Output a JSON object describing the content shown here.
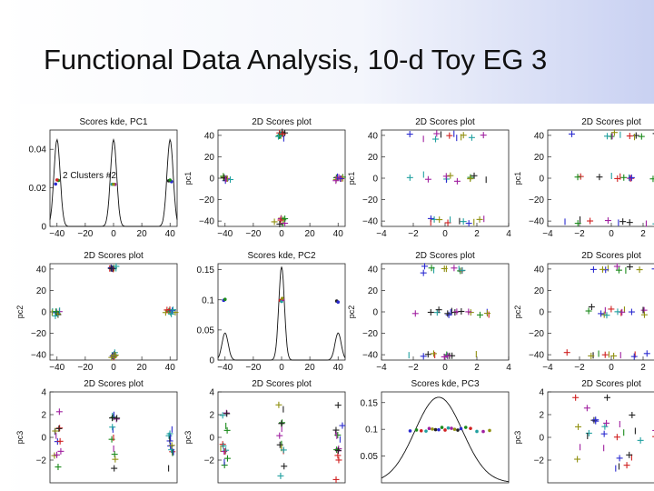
{
  "slide": {
    "title": "Functional Data Analysis, 10-d Toy EG 3"
  },
  "chart_data": {
    "type": "scatter",
    "layout": "scatterplot-matrix",
    "series_colors": [
      "#2a2ad0",
      "#1a8a1a",
      "#d02020",
      "#20a0a0",
      "#a020a0",
      "#909010",
      "#202020"
    ],
    "panels": [
      {
        "row": 0,
        "col": 0,
        "type": "line",
        "title": "Scores kde, PC1",
        "xlabel": "",
        "ylabel": "",
        "xlim": [
          -45,
          45
        ],
        "ylim": [
          0,
          0.05
        ],
        "xticks": [
          {
            "v": -40,
            "t": "-40"
          },
          {
            "v": -20,
            "t": "-20"
          },
          {
            "v": 0,
            "t": "0"
          },
          {
            "v": 20,
            "t": "20"
          },
          {
            "v": 40,
            "t": "40"
          }
        ],
        "yticks": [
          {
            "v": 0,
            "t": "0"
          },
          {
            "v": 0.02,
            "t": "0.02"
          },
          {
            "v": 0.04,
            "t": "0.04"
          }
        ],
        "annotation": "2 Clusters #2",
        "peaks": [
          {
            "center": -40,
            "height": 0.045,
            "width": 2.2
          },
          {
            "center": 0,
            "height": 0.045,
            "width": 2.2
          },
          {
            "center": 40,
            "height": 0.045,
            "width": 2.2
          }
        ],
        "points_y": 0.023,
        "points_x": [
          -41,
          -39,
          -40,
          -1,
          1,
          0,
          39,
          41,
          40
        ]
      },
      {
        "row": 0,
        "col": 1,
        "type": "scatter",
        "title": "2D Scores plot",
        "xlabel": "",
        "ylabel": "pc1",
        "xlim": [
          -45,
          45
        ],
        "ylim": [
          -45,
          45
        ],
        "xticks": [
          {
            "v": -40,
            "t": "-40"
          },
          {
            "v": -20,
            "t": "-20"
          },
          {
            "v": 0,
            "t": "0"
          },
          {
            "v": 20,
            "t": "20"
          },
          {
            "v": 40,
            "t": "40"
          }
        ],
        "yticks": [
          {
            "v": -40,
            "t": "-40"
          },
          {
            "v": -20,
            "t": "-20"
          },
          {
            "v": 0,
            "t": "0"
          },
          {
            "v": 20,
            "t": "20"
          },
          {
            "v": 40,
            "t": "40"
          }
        ],
        "clusters": [
          {
            "x": 0,
            "y": 40,
            "sx": 1.5,
            "sy": 1.5,
            "n": 10
          },
          {
            "x": -40,
            "y": 0,
            "sx": 1.5,
            "sy": 1.5,
            "n": 10
          },
          {
            "x": 40,
            "y": 0,
            "sx": 1.5,
            "sy": 1.5,
            "n": 10
          },
          {
            "x": 0,
            "y": -40,
            "sx": 1.5,
            "sy": 1.5,
            "n": 10
          }
        ]
      },
      {
        "row": 0,
        "col": 2,
        "type": "scatter",
        "title": "2D Scores plot",
        "xlabel": "",
        "ylabel": "pc1",
        "xlim": [
          -4,
          4
        ],
        "ylim": [
          -45,
          45
        ],
        "xticks": [
          {
            "v": -4,
            "t": "-4"
          },
          {
            "v": -2,
            "t": "-2"
          },
          {
            "v": 0,
            "t": "0"
          },
          {
            "v": 2,
            "t": "2"
          },
          {
            "v": 4,
            "t": "4"
          }
        ],
        "yticks": [
          {
            "v": -40,
            "t": "-40"
          },
          {
            "v": -20,
            "t": "-20"
          },
          {
            "v": 0,
            "t": "0"
          },
          {
            "v": 20,
            "t": "20"
          },
          {
            "v": 40,
            "t": "40"
          }
        ],
        "clusters": [
          {
            "x": 0.2,
            "y": 40,
            "sx": 1.4,
            "sy": 1.5,
            "n": 12
          },
          {
            "x": 0.2,
            "y": 0,
            "sx": 1.4,
            "sy": 1.5,
            "n": 12
          },
          {
            "x": 0.2,
            "y": -40,
            "sx": 1.4,
            "sy": 1.5,
            "n": 12
          }
        ]
      },
      {
        "row": 0,
        "col": 3,
        "type": "scatter",
        "title": "2D Scores plot",
        "xlabel": "",
        "ylabel": "pc1",
        "xlim": [
          -4,
          4
        ],
        "ylim": [
          -45,
          45
        ],
        "xticks": [
          {
            "v": -4,
            "t": "-4"
          },
          {
            "v": -2,
            "t": "-2"
          },
          {
            "v": 0,
            "t": "0"
          },
          {
            "v": 2,
            "t": "2"
          },
          {
            "v": 4,
            "t": "4"
          }
        ],
        "yticks": [
          {
            "v": -40,
            "t": "-40"
          },
          {
            "v": -20,
            "t": "-20"
          },
          {
            "v": 0,
            "t": "0"
          },
          {
            "v": 20,
            "t": "20"
          },
          {
            "v": 40,
            "t": "40"
          }
        ],
        "clusters": [
          {
            "x": 0.5,
            "y": 40,
            "sx": 1.8,
            "sy": 1.5,
            "n": 12
          },
          {
            "x": 0.5,
            "y": 0,
            "sx": 1.8,
            "sy": 1.5,
            "n": 12
          },
          {
            "x": 0.5,
            "y": -40,
            "sx": 1.8,
            "sy": 1.5,
            "n": 12
          }
        ]
      },
      {
        "row": 1,
        "col": 0,
        "type": "scatter",
        "title": "2D Scores plot",
        "xlabel": "",
        "ylabel": "pc2",
        "xlim": [
          -45,
          45
        ],
        "ylim": [
          -45,
          45
        ],
        "xticks": [
          {
            "v": -40,
            "t": "-40"
          },
          {
            "v": -20,
            "t": "-20"
          },
          {
            "v": 0,
            "t": "0"
          },
          {
            "v": 20,
            "t": "20"
          },
          {
            "v": 40,
            "t": "40"
          }
        ],
        "yticks": [
          {
            "v": -40,
            "t": "-40"
          },
          {
            "v": -20,
            "t": "-20"
          },
          {
            "v": 0,
            "t": "0"
          },
          {
            "v": 20,
            "t": "20"
          },
          {
            "v": 40,
            "t": "40"
          }
        ],
        "clusters": [
          {
            "x": 0,
            "y": 40,
            "sx": 1.5,
            "sy": 1.5,
            "n": 10
          },
          {
            "x": -40,
            "y": 0,
            "sx": 1.5,
            "sy": 1.5,
            "n": 10
          },
          {
            "x": 40,
            "y": 0,
            "sx": 1.5,
            "sy": 1.5,
            "n": 10
          },
          {
            "x": 0,
            "y": -40,
            "sx": 1.5,
            "sy": 1.5,
            "n": 10
          }
        ]
      },
      {
        "row": 1,
        "col": 1,
        "type": "line",
        "title": "Scores kde, PC2",
        "xlabel": "",
        "ylabel": "",
        "xlim": [
          -45,
          45
        ],
        "ylim": [
          0,
          0.16
        ],
        "xticks": [
          {
            "v": -40,
            "t": "-40"
          },
          {
            "v": -20,
            "t": "-20"
          },
          {
            "v": 0,
            "t": "0"
          },
          {
            "v": 20,
            "t": "20"
          },
          {
            "v": 40,
            "t": "40"
          }
        ],
        "yticks": [
          {
            "v": 0,
            "t": "0"
          },
          {
            "v": 0.05,
            "t": "0.05"
          },
          {
            "v": 0.1,
            "t": "0.1"
          },
          {
            "v": 0.15,
            "t": "0.15"
          }
        ],
        "peaks": [
          {
            "center": -40,
            "height": 0.045,
            "width": 2.2
          },
          {
            "center": 0,
            "height": 0.155,
            "width": 2.0
          },
          {
            "center": 40,
            "height": 0.045,
            "width": 2.2
          }
        ],
        "points_y": 0.1,
        "points_x": [
          -41,
          -40,
          -1,
          0,
          1,
          0.5,
          39,
          40
        ]
      },
      {
        "row": 1,
        "col": 2,
        "type": "scatter",
        "title": "2D Scores plot",
        "xlabel": "",
        "ylabel": "pc2",
        "xlim": [
          -4,
          4
        ],
        "ylim": [
          -45,
          45
        ],
        "xticks": [
          {
            "v": -4,
            "t": "-4"
          },
          {
            "v": -2,
            "t": "-2"
          },
          {
            "v": 0,
            "t": "0"
          },
          {
            "v": 2,
            "t": "2"
          },
          {
            "v": 4,
            "t": "4"
          }
        ],
        "yticks": [
          {
            "v": -40,
            "t": "-40"
          },
          {
            "v": -20,
            "t": "-20"
          },
          {
            "v": 0,
            "t": "0"
          },
          {
            "v": 20,
            "t": "20"
          },
          {
            "v": 40,
            "t": "40"
          }
        ],
        "clusters": [
          {
            "x": 0.3,
            "y": 40,
            "sx": 1.4,
            "sy": 1.5,
            "n": 12
          },
          {
            "x": 0.3,
            "y": 0,
            "sx": 1.6,
            "sy": 1.5,
            "n": 18
          },
          {
            "x": 0.3,
            "y": -40,
            "sx": 1.4,
            "sy": 1.5,
            "n": 12
          }
        ]
      },
      {
        "row": 1,
        "col": 3,
        "type": "scatter",
        "title": "2D Scores plot",
        "xlabel": "",
        "ylabel": "pc2",
        "xlim": [
          -4,
          4
        ],
        "ylim": [
          -45,
          45
        ],
        "xticks": [
          {
            "v": -4,
            "t": "-4"
          },
          {
            "v": -2,
            "t": "-2"
          },
          {
            "v": 0,
            "t": "0"
          },
          {
            "v": 2,
            "t": "2"
          },
          {
            "v": 4,
            "t": "4"
          }
        ],
        "yticks": [
          {
            "v": -40,
            "t": "-40"
          },
          {
            "v": -20,
            "t": "-20"
          },
          {
            "v": 0,
            "t": "0"
          },
          {
            "v": 20,
            "t": "20"
          },
          {
            "v": 40,
            "t": "40"
          }
        ],
        "clusters": [
          {
            "x": 0.5,
            "y": 40,
            "sx": 1.8,
            "sy": 1.5,
            "n": 12
          },
          {
            "x": 0.5,
            "y": 0,
            "sx": 1.8,
            "sy": 1.5,
            "n": 16
          },
          {
            "x": 0.5,
            "y": -40,
            "sx": 1.8,
            "sy": 1.5,
            "n": 12
          }
        ]
      },
      {
        "row": 2,
        "col": 0,
        "type": "scatter",
        "title": "2D Scores plot",
        "xlabel": "",
        "ylabel": "pc3",
        "xlim": [
          -45,
          45
        ],
        "ylim": [
          -4,
          4
        ],
        "xticks": [],
        "yticks": [
          {
            "v": -2,
            "t": "-2"
          },
          {
            "v": 0,
            "t": "0"
          },
          {
            "v": 2,
            "t": "2"
          },
          {
            "v": 4,
            "t": "4"
          }
        ],
        "clusters": [
          {
            "x": -40,
            "y": 0,
            "sx": 1.2,
            "sy": 1.8,
            "n": 14
          },
          {
            "x": 0,
            "y": 0,
            "sx": 1.2,
            "sy": 1.8,
            "n": 14
          },
          {
            "x": 40,
            "y": 0,
            "sx": 1.2,
            "sy": 1.8,
            "n": 14
          }
        ]
      },
      {
        "row": 2,
        "col": 1,
        "type": "scatter",
        "title": "2D Scores plot",
        "xlabel": "",
        "ylabel": "pc3",
        "xlim": [
          -45,
          45
        ],
        "ylim": [
          -4,
          4
        ],
        "xticks": [],
        "yticks": [
          {
            "v": -2,
            "t": "-2"
          },
          {
            "v": 0,
            "t": "0"
          },
          {
            "v": 2,
            "t": "2"
          },
          {
            "v": 4,
            "t": "4"
          }
        ],
        "clusters": [
          {
            "x": -40,
            "y": 0,
            "sx": 1.2,
            "sy": 1.8,
            "n": 14
          },
          {
            "x": 0,
            "y": 0,
            "sx": 1.2,
            "sy": 1.8,
            "n": 14
          },
          {
            "x": 40,
            "y": 0,
            "sx": 1.2,
            "sy": 1.8,
            "n": 14
          }
        ]
      },
      {
        "row": 2,
        "col": 2,
        "type": "line",
        "title": "Scores kde, PC3",
        "xlabel": "",
        "ylabel": "",
        "xlim": [
          -4,
          4
        ],
        "ylim": [
          0,
          0.17
        ],
        "xticks": [],
        "yticks": [
          {
            "v": 0.05,
            "t": "0.05"
          },
          {
            "v": 0.1,
            "t": "0.1"
          },
          {
            "v": 0.15,
            "t": "0.15"
          }
        ],
        "peaks": [
          {
            "center": -0.4,
            "height": 0.16,
            "width": 1.5
          }
        ],
        "points_y": 0.1,
        "points_x": [
          -2.2,
          -1.8,
          -1.5,
          -1.2,
          -1,
          -0.8,
          -0.6,
          -0.4,
          -0.2,
          0,
          0.2,
          0.4,
          0.6,
          0.8,
          1,
          1.3,
          1.6,
          2,
          2.4,
          2.8
        ]
      },
      {
        "row": 2,
        "col": 3,
        "type": "scatter",
        "title": "2D Scores plot",
        "xlabel": "",
        "ylabel": "pc3",
        "xlim": [
          -4,
          4
        ],
        "ylim": [
          -4,
          4
        ],
        "xticks": [],
        "yticks": [
          {
            "v": -2,
            "t": "-2"
          },
          {
            "v": 0,
            "t": "0"
          },
          {
            "v": 2,
            "t": "2"
          },
          {
            "v": 4,
            "t": "4"
          }
        ],
        "clusters": [
          {
            "x": 0.3,
            "y": 0,
            "sx": 1.8,
            "sy": 1.8,
            "n": 30
          }
        ]
      }
    ]
  }
}
